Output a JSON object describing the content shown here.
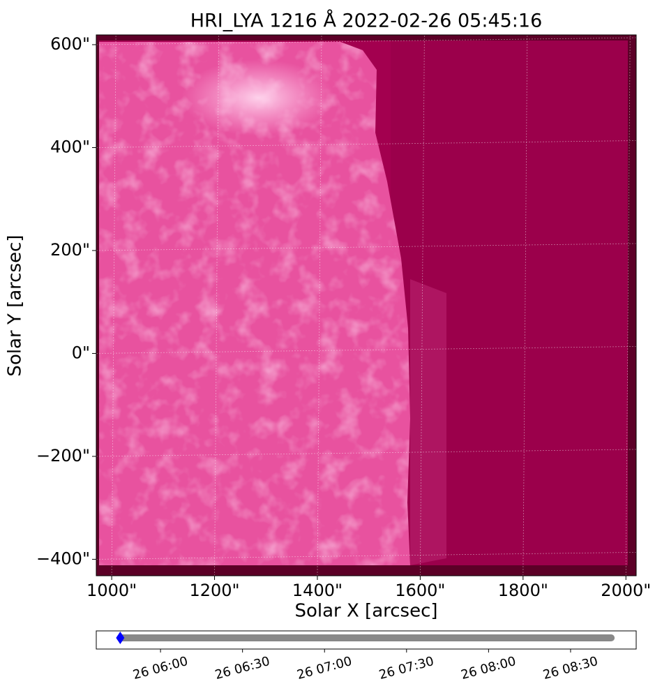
{
  "chart_data": [
    {
      "type": "image",
      "title": "HRI_LYA 1216 Å 2022-02-26 05:45:16",
      "x_label": "Solar X [arcsec]",
      "y_label": "Solar Y [arcsec]",
      "xlim": [
        970,
        2020
      ],
      "ylim": [
        -432,
        619
      ],
      "xticks": [
        {
          "value": 1000,
          "label": "1000\""
        },
        {
          "value": 1200,
          "label": "1200\""
        },
        {
          "value": 1400,
          "label": "1400\""
        },
        {
          "value": 1600,
          "label": "1600\""
        },
        {
          "value": 1800,
          "label": "1800\""
        },
        {
          "value": 2000,
          "label": "2000\""
        }
      ],
      "yticks": [
        {
          "value": 600,
          "label": "600\""
        },
        {
          "value": 400,
          "label": "400\""
        },
        {
          "value": 200,
          "label": "200\""
        },
        {
          "value": 0,
          "label": "0\""
        },
        {
          "value": -200,
          "label": "−200\""
        },
        {
          "value": -400,
          "label": "−400\""
        }
      ],
      "grid": true
    },
    {
      "type": "timeline",
      "x": [
        "05:45:16",
        "08:44:50"
      ],
      "color": "#888888",
      "marker": {
        "x": "05:45:16",
        "color": "#0000ff"
      },
      "xlim": [
        "05:36:30",
        "08:54:00"
      ],
      "xticks": [
        {
          "value": "06:00",
          "label": "26 06:00"
        },
        {
          "value": "06:30",
          "label": "26 06:30"
        },
        {
          "value": "07:00",
          "label": "26 07:00"
        },
        {
          "value": "07:30",
          "label": "26 07:30"
        },
        {
          "value": "08:00",
          "label": "26 08:00"
        },
        {
          "value": "08:30",
          "label": "26 08:30"
        }
      ]
    }
  ]
}
